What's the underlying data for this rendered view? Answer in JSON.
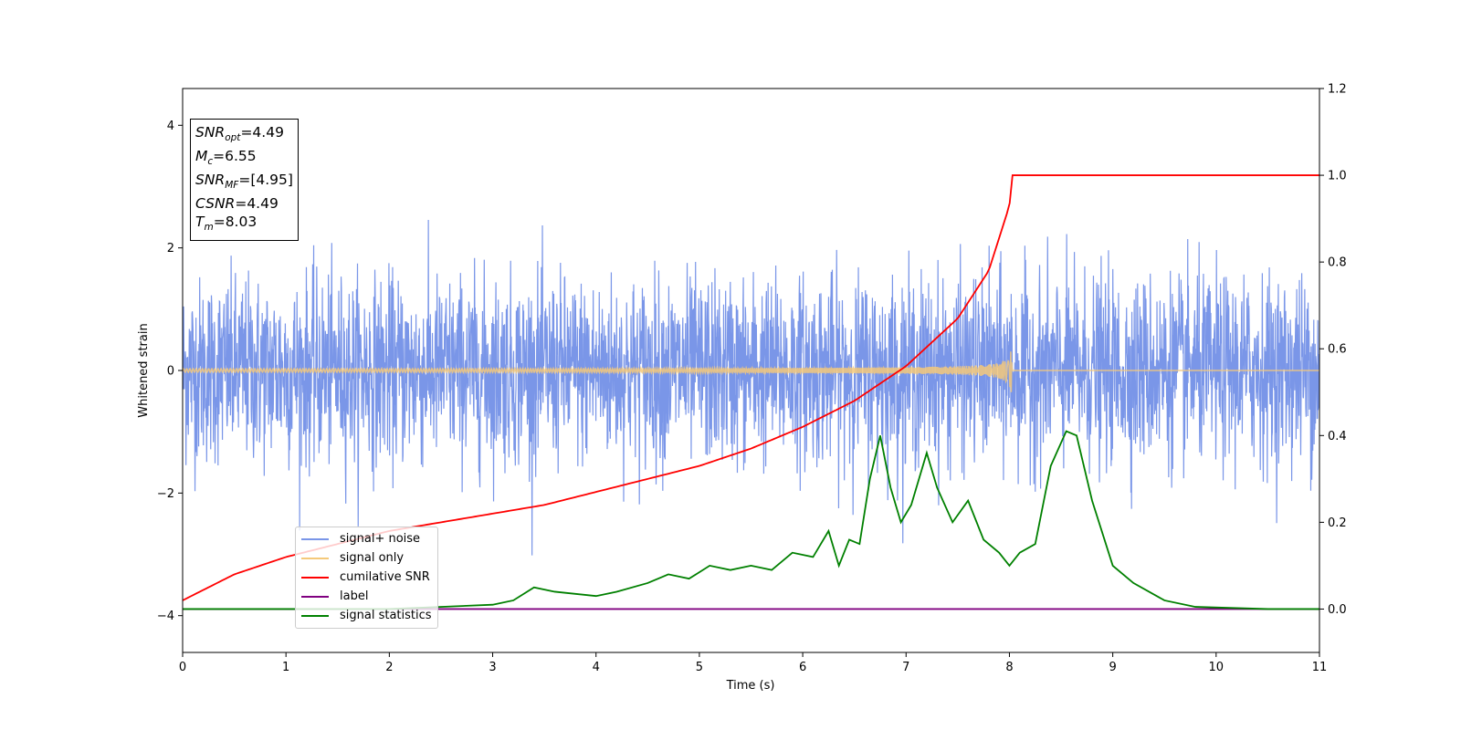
{
  "chart_data": {
    "type": "line",
    "xlabel": "Time (s)",
    "ylabel": "Whitened strain",
    "xlim": [
      0,
      11
    ],
    "ylim_left": [
      -4.6,
      4.6
    ],
    "ylim_right": [
      -0.1,
      1.2
    ],
    "x_ticks": [
      "0",
      "1",
      "2",
      "3",
      "4",
      "5",
      "6",
      "7",
      "8",
      "9",
      "10",
      "11"
    ],
    "y_left_ticks": [
      "4",
      "2",
      "0",
      "−2",
      "−4"
    ],
    "y_right_ticks": [
      "1.2",
      "1.0",
      "0.8",
      "0.6",
      "0.4",
      "0.2",
      "0.0"
    ],
    "legend_position": "lower-left",
    "stats": {
      "snr_opt": {
        "symbol": "SNR",
        "sub": "opt",
        "value": "=4.49"
      },
      "mc": {
        "symbol": "M",
        "sub": "c",
        "value": "=6.55"
      },
      "snr_mf": {
        "symbol": "SNR",
        "sub": "MF",
        "value": "=[4.95]"
      },
      "csnr": {
        "symbol": "CSNR",
        "value": "=4.49"
      },
      "tm": {
        "symbol": "T",
        "sub": "m",
        "value": "=8.03"
      }
    },
    "series": [
      {
        "name": "signal+ noise",
        "color": "#7a96e8",
        "axis": "left",
        "description_kind": "noise",
        "std": 0.75,
        "merger_time": 8.03
      },
      {
        "name": "signal only",
        "color": "#f5c97a",
        "axis": "left",
        "description_kind": "chirp",
        "peak_amplitude": 0.55,
        "merger_time": 8.03
      },
      {
        "name": "cumilative SNR",
        "color": "#ff0000",
        "axis": "right",
        "x": [
          0,
          0.5,
          1,
          1.5,
          2,
          2.5,
          3,
          3.5,
          4,
          4.5,
          5,
          5.5,
          6,
          6.5,
          7,
          7.5,
          7.8,
          8.0,
          8.03,
          11
        ],
        "y": [
          0.02,
          0.08,
          0.12,
          0.15,
          0.18,
          0.2,
          0.22,
          0.24,
          0.27,
          0.3,
          0.33,
          0.37,
          0.42,
          0.48,
          0.56,
          0.67,
          0.78,
          0.93,
          1.0,
          1.0
        ]
      },
      {
        "name": "label",
        "color": "#800080",
        "axis": "right",
        "x": [
          0,
          11
        ],
        "y": [
          0.0,
          0.0
        ]
      },
      {
        "name": "signal statistics",
        "color": "#008000",
        "axis": "right",
        "x": [
          0,
          2,
          3,
          3.2,
          3.4,
          3.6,
          4.0,
          4.2,
          4.5,
          4.7,
          4.9,
          5.1,
          5.3,
          5.5,
          5.7,
          5.9,
          6.1,
          6.25,
          6.35,
          6.45,
          6.55,
          6.65,
          6.75,
          6.85,
          6.95,
          7.05,
          7.2,
          7.3,
          7.45,
          7.6,
          7.75,
          7.9,
          8.0,
          8.1,
          8.25,
          8.4,
          8.55,
          8.65,
          8.8,
          9.0,
          9.2,
          9.5,
          9.8,
          10.5,
          11
        ],
        "y": [
          0.0,
          0.0,
          0.01,
          0.02,
          0.05,
          0.04,
          0.03,
          0.04,
          0.06,
          0.08,
          0.07,
          0.1,
          0.09,
          0.1,
          0.09,
          0.13,
          0.12,
          0.18,
          0.1,
          0.16,
          0.15,
          0.3,
          0.4,
          0.28,
          0.2,
          0.24,
          0.36,
          0.28,
          0.2,
          0.25,
          0.16,
          0.13,
          0.1,
          0.13,
          0.15,
          0.33,
          0.41,
          0.4,
          0.25,
          0.1,
          0.06,
          0.02,
          0.005,
          0.0,
          0.0
        ]
      }
    ]
  }
}
